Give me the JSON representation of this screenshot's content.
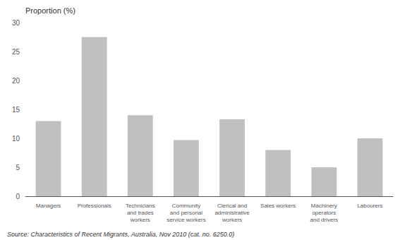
{
  "chart_data": {
    "type": "bar",
    "ylabel": "Proportion (%)",
    "annotation": "Source: Characteristics of Recent Migrants, Australia, Nov 2010 (cat. no. 6250.0)",
    "categories": [
      "Managers",
      "Professionals",
      "Technicians\nand trades\nworkers",
      "Community\nand personal\nservice workers",
      "Clerical and\nadministrative\nworkers",
      "Sales workers",
      "Machinery\noperators\nand drivers",
      "Labourers"
    ],
    "values": [
      13.0,
      27.5,
      14.0,
      9.7,
      13.3,
      8.0,
      5.0,
      10.0
    ],
    "color": "#c0c0c0",
    "ylim": [
      0,
      30
    ],
    "yticks": [
      0,
      5,
      10,
      15,
      20,
      25,
      30
    ],
    "grid": false
  }
}
